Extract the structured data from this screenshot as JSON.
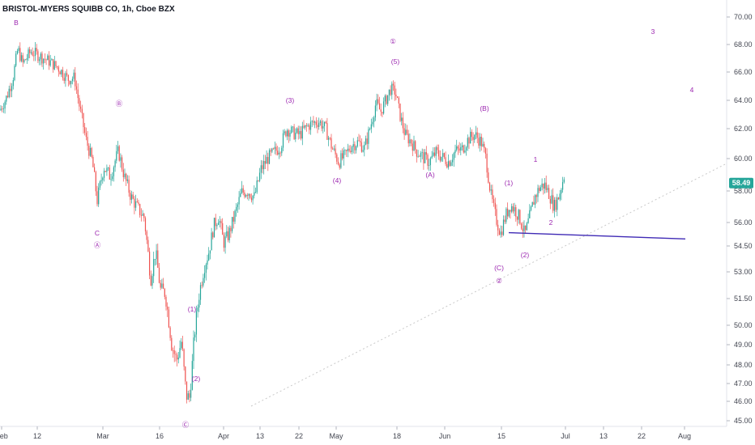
{
  "window": {
    "title": "BRISTOL-MYERS SQUIBB CO, 1h, Cboe BZX"
  },
  "chart_data": {
    "type": "candlestick",
    "title": "BRISTOL-MYERS SQUIBB CO, 1h, Cboe BZX",
    "ylim": [
      44.7,
      71.0
    ],
    "y_ticks": [
      45.0,
      46.0,
      47.0,
      48.0,
      49.0,
      50.0,
      51.5,
      53.0,
      54.5,
      56.0,
      58.0,
      60.0,
      62.0,
      64.0,
      66.0,
      68.0,
      70.0
    ],
    "x_ticks": [
      "Feb",
      "12",
      "Mar",
      "16",
      "Apr",
      "13",
      "22",
      "May",
      "18",
      "Jun",
      "15",
      "Jul",
      "13",
      "22",
      "Aug"
    ],
    "last_price": "58.49",
    "colors": {
      "up": "#26a69a",
      "down": "#ef5350",
      "wave": "#9c27b0",
      "trendline": "#3f2ab5",
      "badge": "#26a69a"
    },
    "price_path": [
      [
        0,
        63.3
      ],
      [
        8,
        64.2
      ],
      [
        16,
        65.6
      ],
      [
        22,
        67.7
      ],
      [
        28,
        66.6
      ],
      [
        38,
        67.5
      ],
      [
        48,
        67.2
      ],
      [
        60,
        66.8
      ],
      [
        72,
        66.3
      ],
      [
        84,
        65.5
      ],
      [
        92,
        65.6
      ],
      [
        98,
        63.6
      ],
      [
        106,
        61.3
      ],
      [
        114,
        59.8
      ],
      [
        120,
        57.4
      ],
      [
        128,
        59.5
      ],
      [
        136,
        58.9
      ],
      [
        146,
        60.5
      ],
      [
        154,
        58.8
      ],
      [
        162,
        57.6
      ],
      [
        170,
        56.9
      ],
      [
        178,
        56.3
      ],
      [
        186,
        52.6
      ],
      [
        192,
        54.2
      ],
      [
        198,
        52.0
      ],
      [
        204,
        51.8
      ],
      [
        212,
        49.0
      ],
      [
        218,
        48.2
      ],
      [
        224,
        49.2
      ],
      [
        230,
        46.3
      ],
      [
        234,
        46.2
      ],
      [
        240,
        49.5
      ],
      [
        246,
        51.8
      ],
      [
        252,
        53.3
      ],
      [
        258,
        54.2
      ],
      [
        264,
        55.8
      ],
      [
        270,
        56.4
      ],
      [
        276,
        54.7
      ],
      [
        282,
        55.2
      ],
      [
        290,
        56.5
      ],
      [
        298,
        57.9
      ],
      [
        306,
        58.0
      ],
      [
        314,
        57.6
      ],
      [
        322,
        59.3
      ],
      [
        330,
        60.0
      ],
      [
        338,
        60.4
      ],
      [
        346,
        60.8
      ],
      [
        354,
        62.0
      ],
      [
        362,
        61.7
      ],
      [
        370,
        61.6
      ],
      [
        378,
        62.1
      ],
      [
        386,
        62.4
      ],
      [
        394,
        62.5
      ],
      [
        402,
        62.0
      ],
      [
        410,
        60.7
      ],
      [
        418,
        59.8
      ],
      [
        426,
        60.2
      ],
      [
        434,
        60.9
      ],
      [
        442,
        61.1
      ],
      [
        450,
        60.7
      ],
      [
        458,
        62.3
      ],
      [
        464,
        63.8
      ],
      [
        470,
        63.2
      ],
      [
        476,
        64.0
      ],
      [
        482,
        64.8
      ],
      [
        488,
        64.6
      ],
      [
        494,
        62.9
      ],
      [
        500,
        61.6
      ],
      [
        508,
        61.1
      ],
      [
        514,
        60.5
      ],
      [
        522,
        60.1
      ],
      [
        530,
        59.8
      ],
      [
        538,
        60.4
      ],
      [
        546,
        60.1
      ],
      [
        554,
        59.8
      ],
      [
        562,
        60.5
      ],
      [
        570,
        60.6
      ],
      [
        578,
        61.3
      ],
      [
        586,
        61.6
      ],
      [
        594,
        61.1
      ],
      [
        600,
        60.0
      ],
      [
        606,
        57.7
      ],
      [
        612,
        56.3
      ],
      [
        618,
        55.3
      ],
      [
        624,
        56.4
      ],
      [
        630,
        57.1
      ],
      [
        636,
        56.8
      ],
      [
        642,
        56.2
      ],
      [
        648,
        55.2
      ],
      [
        654,
        56.4
      ],
      [
        660,
        57.6
      ],
      [
        666,
        58.2
      ],
      [
        672,
        58.4
      ],
      [
        678,
        57.8
      ],
      [
        684,
        57.0
      ],
      [
        690,
        57.7
      ],
      [
        698,
        59.3
      ]
    ],
    "waves": [
      {
        "label": "B",
        "date_index": 2
      },
      {
        "label": "Ⓑ",
        "date_index": 10
      },
      {
        "label": "C",
        "date_index": 16
      },
      {
        "label": "Ⓐ",
        "date_index": 16
      },
      {
        "label": "(1)",
        "date_index": 31
      },
      {
        "label": "(2)",
        "date_index": 33
      },
      {
        "label": "Ⓒ",
        "date_index": 33
      },
      {
        "label": "(3)",
        "date_index": 44
      },
      {
        "label": "(4)",
        "date_index": 51
      },
      {
        "label": "①",
        "date_index": 60
      },
      {
        "label": "(5)",
        "date_index": 60
      },
      {
        "label": "(A)",
        "date_index": 67
      },
      {
        "label": "(B)",
        "date_index": 72
      },
      {
        "label": "(1)",
        "date_index": 76
      },
      {
        "label": "(C)",
        "date_index": 76
      },
      {
        "label": "②",
        "date_index": 76
      },
      {
        "label": "(2)",
        "date_index": 80
      },
      {
        "label": "1",
        "date_index": 82
      },
      {
        "label": "2",
        "date_index": 84
      },
      {
        "label": "3",
        "date_index": 91
      },
      {
        "label": "4",
        "date_index": 96
      }
    ]
  }
}
